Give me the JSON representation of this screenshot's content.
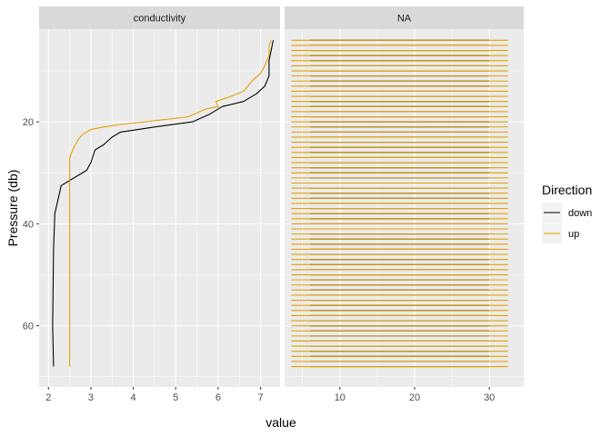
{
  "chart_data": {
    "type": "line",
    "x_label": "value",
    "y_label": "Pressure (db)",
    "y_reversed": true,
    "ylim": [
      72,
      1.8
    ],
    "y_ticks": [
      20,
      40,
      60
    ],
    "legend": {
      "title": "Direction",
      "position": "right"
    },
    "series_colors": {
      "down": "#000000",
      "up": "#E69F00"
    },
    "grid": true,
    "panels": [
      {
        "strip": "conductivity",
        "xlim": [
          1.78,
          7.46
        ],
        "x_ticks": [
          2,
          3,
          4,
          5,
          6,
          7
        ],
        "series": [
          {
            "name": "down",
            "points": [
              [
                2.12,
                68
              ],
              [
                2.1,
                60
              ],
              [
                2.12,
                45
              ],
              [
                2.15,
                38
              ],
              [
                2.3,
                32.5
              ],
              [
                2.6,
                31
              ],
              [
                2.9,
                29.5
              ],
              [
                3.0,
                28
              ],
              [
                3.1,
                25.5
              ],
              [
                3.3,
                24.5
              ],
              [
                3.5,
                23
              ],
              [
                3.7,
                22
              ],
              [
                4.5,
                21
              ],
              [
                5.4,
                20
              ],
              [
                5.8,
                18.5
              ],
              [
                6.1,
                17
              ],
              [
                6.6,
                16
              ],
              [
                6.9,
                14.5
              ],
              [
                7.1,
                13
              ],
              [
                7.2,
                11
              ],
              [
                7.2,
                8
              ],
              [
                7.25,
                6
              ],
              [
                7.3,
                4
              ]
            ]
          },
          {
            "name": "up",
            "points": [
              [
                2.5,
                68
              ],
              [
                2.5,
                60
              ],
              [
                2.5,
                45
              ],
              [
                2.5,
                33
              ],
              [
                2.5,
                27
              ],
              [
                2.6,
                25
              ],
              [
                2.7,
                23.5
              ],
              [
                2.8,
                22.5
              ],
              [
                3.0,
                21.5
              ],
              [
                3.3,
                21
              ],
              [
                3.7,
                20.5
              ],
              [
                4.3,
                20
              ],
              [
                5.3,
                19
              ],
              [
                5.7,
                17.5
              ],
              [
                6.0,
                17
              ],
              [
                5.95,
                16
              ],
              [
                6.3,
                15
              ],
              [
                6.6,
                14
              ],
              [
                6.8,
                12
              ],
              [
                7.0,
                10.5
              ],
              [
                7.1,
                9
              ],
              [
                7.2,
                7
              ],
              [
                7.2,
                5
              ],
              [
                7.25,
                4
              ]
            ]
          }
        ]
      },
      {
        "strip": "NA",
        "xlim": [
          2.6,
          34.6
        ],
        "x_ticks": [
          10,
          20,
          30
        ],
        "series": [
          {
            "name": "down",
            "x_range": [
              6,
              30
            ],
            "y_from": 4,
            "y_to": 68
          },
          {
            "name": "up",
            "x_range": [
              3.5,
              32.5
            ],
            "y_from": 4,
            "y_to": 68
          }
        ]
      }
    ]
  }
}
